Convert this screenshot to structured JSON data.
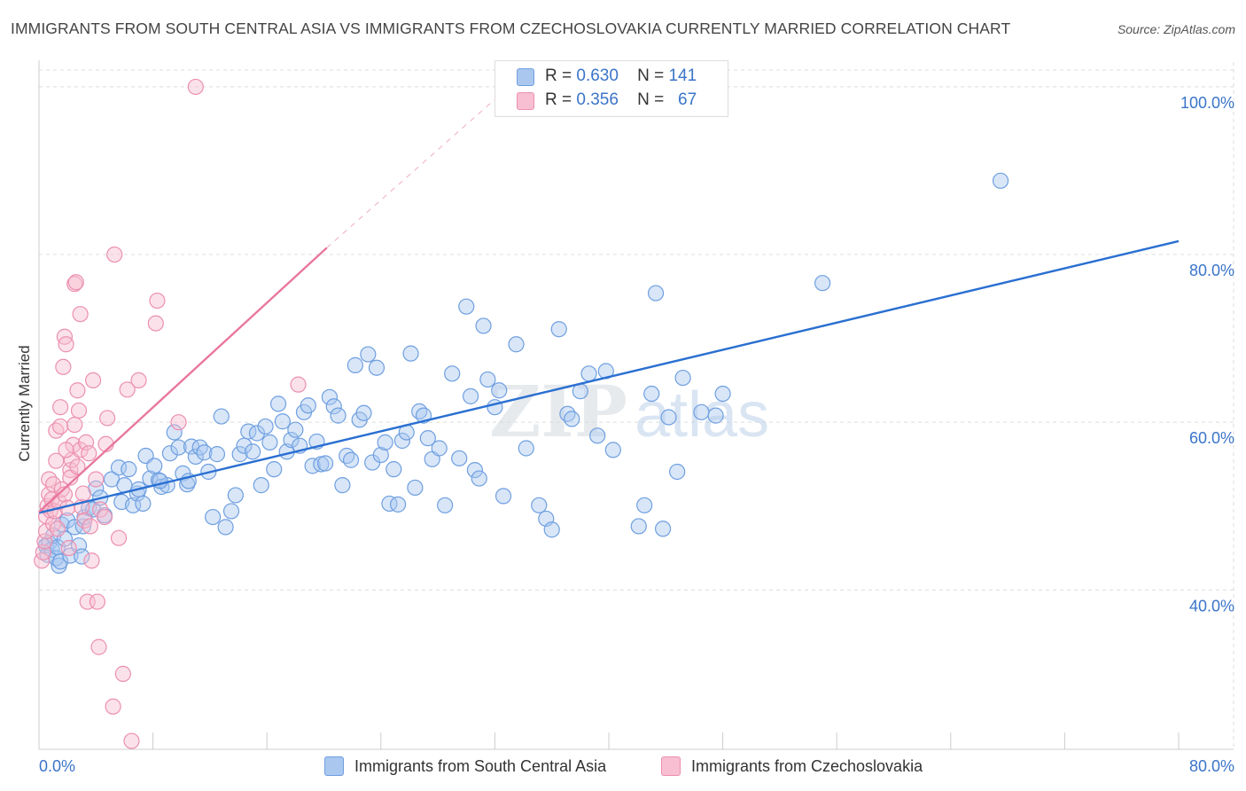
{
  "title": "IMMIGRANTS FROM SOUTH CENTRAL ASIA VS IMMIGRANTS FROM CZECHOSLOVAKIA CURRENTLY MARRIED CORRELATION CHART",
  "source": "Source: ZipAtlas.com",
  "watermark": {
    "zip": "ZIP",
    "atlas": "atlas"
  },
  "legend": {
    "rows": [
      {
        "r_label": "R =",
        "r_value": "0.630",
        "n_label": "N =",
        "n_value": "141",
        "color": "#a9c7ef",
        "stroke": "#6f9fe0"
      },
      {
        "r_label": "R =",
        "r_value": "0.356",
        "n_label": "N =",
        "n_value": "67",
        "color": "#f7bfd1",
        "stroke": "#ec8fb0"
      }
    ]
  },
  "bottom_legend": [
    {
      "label": "Immigrants from South Central Asia",
      "color": "#a9c7ef",
      "stroke": "#6f9fe0"
    },
    {
      "label": "Immigrants from Czechoslovakia",
      "color": "#f7bfd1",
      "stroke": "#ec8fb0"
    }
  ],
  "chart_data": {
    "type": "scatter",
    "title": "IMMIGRANTS FROM SOUTH CENTRAL ASIA VS IMMIGRANTS FROM CZECHOSLOVAKIA CURRENTLY MARRIED CORRELATION CHART",
    "xlabel": "",
    "ylabel": "Currently Married",
    "xlim": [
      0,
      80
    ],
    "ylim": [
      21,
      102
    ],
    "x_ticks": [
      "0.0%",
      "80.0%"
    ],
    "y_ticks": [
      {
        "value": 40,
        "label": "40.0%"
      },
      {
        "value": 60,
        "label": "60.0%"
      },
      {
        "value": 80,
        "label": "80.0%"
      },
      {
        "value": 100,
        "label": "100.0%"
      }
    ],
    "grid": true,
    "legend_position": "top-center",
    "series": [
      {
        "name": "Immigrants from South Central Asia",
        "color": "#6f9fe0",
        "fill": "#a9c7ef",
        "trend": {
          "x": [
            0,
            80
          ],
          "y": [
            49.2,
            81.6
          ],
          "color": "#2a6fd1"
        },
        "points": [
          [
            0.5,
            45.3
          ],
          [
            0.6,
            44.2
          ],
          [
            0.7,
            45.6
          ],
          [
            0.9,
            44.8
          ],
          [
            1.0,
            46.5
          ],
          [
            1.2,
            43.8
          ],
          [
            1.3,
            45.1
          ],
          [
            1.4,
            42.9
          ],
          [
            1.5,
            43.4
          ],
          [
            1.6,
            47.8
          ],
          [
            1.8,
            46.1
          ],
          [
            2.0,
            48.3
          ],
          [
            2.2,
            44.1
          ],
          [
            2.5,
            47.5
          ],
          [
            2.8,
            45.3
          ],
          [
            3.0,
            44.0
          ],
          [
            3.1,
            47.6
          ],
          [
            3.2,
            48.7
          ],
          [
            3.5,
            49.8
          ],
          [
            3.8,
            49.6
          ],
          [
            4.0,
            52.1
          ],
          [
            4.3,
            51.0
          ],
          [
            4.6,
            48.9
          ],
          [
            5.1,
            53.2
          ],
          [
            5.6,
            54.6
          ],
          [
            5.8,
            50.5
          ],
          [
            6.0,
            52.5
          ],
          [
            6.3,
            54.4
          ],
          [
            6.6,
            50.1
          ],
          [
            6.9,
            51.5
          ],
          [
            7.0,
            52.0
          ],
          [
            7.3,
            50.3
          ],
          [
            7.5,
            56.0
          ],
          [
            7.8,
            53.3
          ],
          [
            8.1,
            54.8
          ],
          [
            8.4,
            53.1
          ],
          [
            8.6,
            52.3
          ],
          [
            9.0,
            52.5
          ],
          [
            9.2,
            56.3
          ],
          [
            9.5,
            58.8
          ],
          [
            9.8,
            57.0
          ],
          [
            10.1,
            53.9
          ],
          [
            10.4,
            52.6
          ],
          [
            10.7,
            57.1
          ],
          [
            11.0,
            55.9
          ],
          [
            11.3,
            57.0
          ],
          [
            11.6,
            56.4
          ],
          [
            11.9,
            54.1
          ],
          [
            12.2,
            48.7
          ],
          [
            12.5,
            56.2
          ],
          [
            12.8,
            60.7
          ],
          [
            13.1,
            47.5
          ],
          [
            13.5,
            49.4
          ],
          [
            13.8,
            51.3
          ],
          [
            14.1,
            56.2
          ],
          [
            14.4,
            57.2
          ],
          [
            14.7,
            58.9
          ],
          [
            15.0,
            56.5
          ],
          [
            15.3,
            58.7
          ],
          [
            15.6,
            52.5
          ],
          [
            15.9,
            59.5
          ],
          [
            16.2,
            57.6
          ],
          [
            16.5,
            54.4
          ],
          [
            16.8,
            62.2
          ],
          [
            17.1,
            60.1
          ],
          [
            17.4,
            56.5
          ],
          [
            17.7,
            57.9
          ],
          [
            18.0,
            59.1
          ],
          [
            18.3,
            57.2
          ],
          [
            18.6,
            61.2
          ],
          [
            18.9,
            62.0
          ],
          [
            19.2,
            54.8
          ],
          [
            19.5,
            57.7
          ],
          [
            19.8,
            55.0
          ],
          [
            20.1,
            55.1
          ],
          [
            20.4,
            63.0
          ],
          [
            20.7,
            61.9
          ],
          [
            21.0,
            60.8
          ],
          [
            21.3,
            52.5
          ],
          [
            21.6,
            56.0
          ],
          [
            21.9,
            55.5
          ],
          [
            22.2,
            66.8
          ],
          [
            22.5,
            60.3
          ],
          [
            22.8,
            61.1
          ],
          [
            23.1,
            68.1
          ],
          [
            23.4,
            55.2
          ],
          [
            23.7,
            66.5
          ],
          [
            24.0,
            56.1
          ],
          [
            24.3,
            57.6
          ],
          [
            24.6,
            50.3
          ],
          [
            24.9,
            54.4
          ],
          [
            25.2,
            50.2
          ],
          [
            25.5,
            57.8
          ],
          [
            25.8,
            58.8
          ],
          [
            26.1,
            68.2
          ],
          [
            26.4,
            52.2
          ],
          [
            26.7,
            61.3
          ],
          [
            27.0,
            60.8
          ],
          [
            27.3,
            58.1
          ],
          [
            27.6,
            55.6
          ],
          [
            28.1,
            56.9
          ],
          [
            28.5,
            50.1
          ],
          [
            29.0,
            65.8
          ],
          [
            29.5,
            55.7
          ],
          [
            30.0,
            73.8
          ],
          [
            30.3,
            63.1
          ],
          [
            30.6,
            54.3
          ],
          [
            30.9,
            53.3
          ],
          [
            31.2,
            71.5
          ],
          [
            31.5,
            65.1
          ],
          [
            32.0,
            61.8
          ],
          [
            32.3,
            63.8
          ],
          [
            32.6,
            51.2
          ],
          [
            33.5,
            69.3
          ],
          [
            34.2,
            56.9
          ],
          [
            35.1,
            50.1
          ],
          [
            35.6,
            48.5
          ],
          [
            36.0,
            47.2
          ],
          [
            36.5,
            71.1
          ],
          [
            37.1,
            61.0
          ],
          [
            37.4,
            60.4
          ],
          [
            38.0,
            63.7
          ],
          [
            38.6,
            65.8
          ],
          [
            39.2,
            58.4
          ],
          [
            39.8,
            66.1
          ],
          [
            40.3,
            56.7
          ],
          [
            42.1,
            47.6
          ],
          [
            42.5,
            50.1
          ],
          [
            43.0,
            63.4
          ],
          [
            43.3,
            75.4
          ],
          [
            43.8,
            47.3
          ],
          [
            44.2,
            60.6
          ],
          [
            44.8,
            54.1
          ],
          [
            45.2,
            65.3
          ],
          [
            46.5,
            61.2
          ],
          [
            47.5,
            60.8
          ],
          [
            48.0,
            63.4
          ],
          [
            55.0,
            76.6
          ],
          [
            67.5,
            88.8
          ],
          [
            8.5,
            53.0
          ],
          [
            10.5,
            53.0
          ]
        ]
      },
      {
        "name": "Immigrants from Czechoslovakia",
        "color": "#ec8fb0",
        "fill": "#f7bfd1",
        "trend": {
          "x": [
            0,
            20.2
          ],
          "y": [
            49.3,
            80.8
          ],
          "dashed_to": [
            33,
            100
          ],
          "color": "#e8779f"
        },
        "points": [
          [
            0.2,
            43.5
          ],
          [
            0.3,
            44.5
          ],
          [
            0.4,
            45.8
          ],
          [
            0.5,
            47.0
          ],
          [
            0.5,
            48.8
          ],
          [
            0.6,
            50.0
          ],
          [
            0.7,
            51.4
          ],
          [
            0.7,
            53.2
          ],
          [
            0.8,
            49.5
          ],
          [
            0.9,
            50.8
          ],
          [
            1.0,
            47.9
          ],
          [
            1.0,
            52.6
          ],
          [
            1.1,
            49.4
          ],
          [
            1.2,
            55.4
          ],
          [
            1.2,
            59.0
          ],
          [
            1.3,
            47.3
          ],
          [
            1.4,
            50.5
          ],
          [
            1.5,
            61.8
          ],
          [
            1.5,
            59.5
          ],
          [
            1.6,
            52.0
          ],
          [
            1.7,
            66.6
          ],
          [
            1.8,
            51.4
          ],
          [
            1.8,
            70.2
          ],
          [
            1.9,
            69.3
          ],
          [
            2.0,
            49.8
          ],
          [
            2.1,
            45.0
          ],
          [
            2.2,
            54.3
          ],
          [
            2.2,
            53.4
          ],
          [
            2.3,
            55.5
          ],
          [
            2.4,
            57.3
          ],
          [
            2.5,
            59.7
          ],
          [
            2.5,
            76.5
          ],
          [
            2.6,
            76.7
          ],
          [
            2.7,
            63.8
          ],
          [
            2.8,
            61.4
          ],
          [
            2.9,
            56.7
          ],
          [
            2.9,
            72.9
          ],
          [
            3.0,
            49.9
          ],
          [
            3.1,
            51.5
          ],
          [
            3.2,
            48.3
          ],
          [
            3.3,
            57.6
          ],
          [
            3.4,
            38.6
          ],
          [
            3.5,
            56.3
          ],
          [
            3.6,
            47.6
          ],
          [
            3.7,
            43.5
          ],
          [
            3.8,
            65.0
          ],
          [
            4.0,
            53.2
          ],
          [
            4.1,
            38.6
          ],
          [
            4.2,
            33.2
          ],
          [
            4.3,
            49.6
          ],
          [
            4.6,
            48.7
          ],
          [
            4.7,
            57.4
          ],
          [
            4.8,
            60.5
          ],
          [
            5.2,
            26.1
          ],
          [
            5.3,
            80.0
          ],
          [
            5.6,
            46.2
          ],
          [
            5.9,
            30.0
          ],
          [
            6.2,
            63.9
          ],
          [
            6.5,
            22.0
          ],
          [
            7.0,
            65.0
          ],
          [
            8.2,
            71.8
          ],
          [
            8.3,
            74.5
          ],
          [
            9.8,
            60.0
          ],
          [
            11.0,
            100.0
          ],
          [
            18.2,
            64.5
          ],
          [
            1.9,
            56.7
          ],
          [
            2.7,
            54.7
          ]
        ]
      }
    ]
  }
}
